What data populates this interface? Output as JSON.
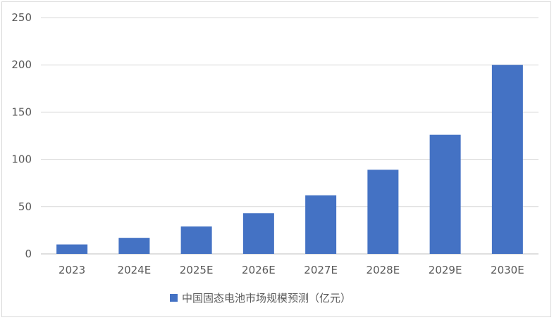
{
  "chart_data": {
    "type": "bar",
    "categories": [
      "2023",
      "2024E",
      "2025E",
      "2026E",
      "2027E",
      "2028E",
      "2029E",
      "2030E"
    ],
    "series": [
      {
        "name": "中国固态电池市场规模预测（亿元）",
        "values": [
          10,
          17,
          29,
          43,
          62,
          89,
          126,
          200
        ],
        "color": "#4472c4"
      }
    ],
    "ylim": [
      0,
      250
    ],
    "yticks": [
      0,
      50,
      100,
      150,
      200,
      250
    ],
    "grid": true,
    "legend_position": "bottom"
  }
}
